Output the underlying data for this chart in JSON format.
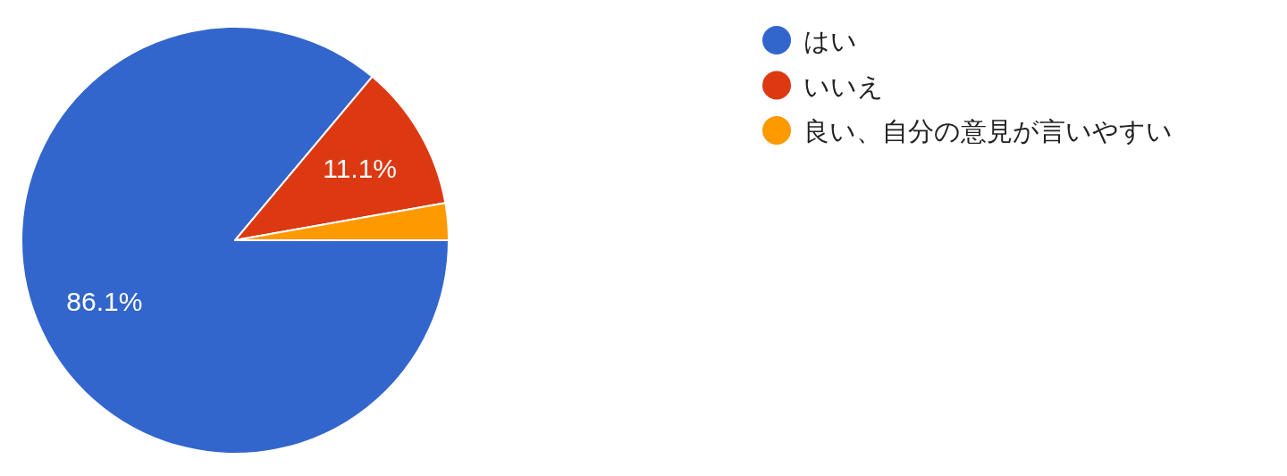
{
  "chart_data": {
    "type": "pie",
    "categories": [
      "はい",
      "いいえ",
      "良い、自分の意見が言いやすい"
    ],
    "values": [
      86.1,
      11.1,
      2.8
    ],
    "colors": [
      "#3366cc",
      "#dc3912",
      "#ff9900"
    ],
    "value_labels": [
      "86.1%",
      "11.1%",
      null
    ],
    "legend": "right"
  }
}
